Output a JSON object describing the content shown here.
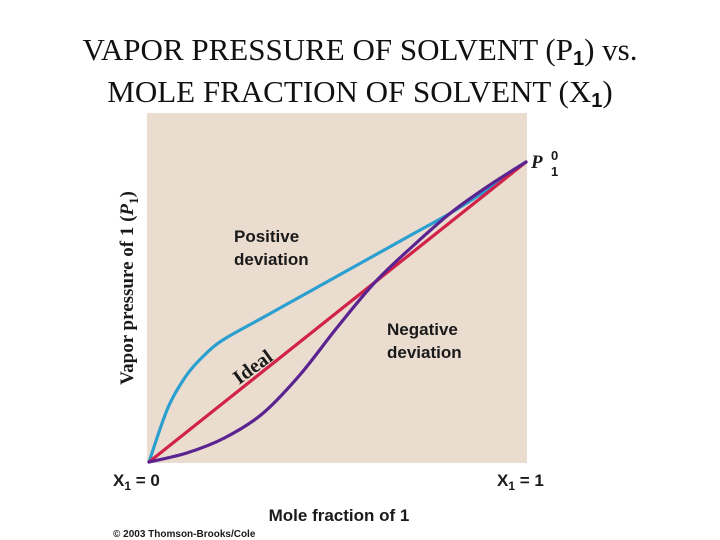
{
  "title": {
    "line1_prefix": "VAPOR PRESSURE OF SOLVENT (P",
    "line1_sub": "1",
    "line1_suffix": ") vs.",
    "line2_prefix": "MOLE FRACTION OF SOLVENT (X",
    "line2_sub": "1",
    "line2_suffix": ")"
  },
  "copyright": "© 2003 Thomson-Brooks/Cole",
  "chart_data": {
    "type": "line",
    "xlabel": "Mole fraction of 1",
    "ylabel_prefix": "Vapor pressure of 1 (",
    "ylabel_var": "P",
    "ylabel_sub": "1",
    "ylabel_suffix": ")",
    "x_tick_left": {
      "var": "X",
      "sub": "1",
      "rest": " = 0"
    },
    "x_tick_right": {
      "var": "X",
      "sub": "1",
      "rest": " = 1"
    },
    "endpoint_label": {
      "var": "P",
      "sup": "0",
      "sub": "1"
    },
    "xlim": [
      0,
      1
    ],
    "ylim": [
      0,
      1
    ],
    "grid": false,
    "plot_background": "#eadccf",
    "series": [
      {
        "label_line1": "Positive",
        "label_line2": "deviation",
        "color": "#2b9fd0",
        "x": [
          0,
          0.05,
          0.1,
          0.15,
          0.2,
          0.3,
          0.4,
          0.5,
          0.6,
          0.7,
          0.8,
          0.9,
          1
        ],
        "y": [
          0,
          0.18,
          0.29,
          0.36,
          0.41,
          0.48,
          0.55,
          0.62,
          0.69,
          0.76,
          0.83,
          0.91,
          1
        ]
      },
      {
        "label": "Ideal",
        "color": "#d1234a",
        "x": [
          0,
          1
        ],
        "y": [
          0,
          1
        ]
      },
      {
        "label_line1": "Negative",
        "label_line2": "deviation",
        "color": "#5a2390",
        "x": [
          0,
          0.1,
          0.2,
          0.3,
          0.4,
          0.5,
          0.6,
          0.7,
          0.8,
          0.9,
          1
        ],
        "y": [
          0,
          0.03,
          0.08,
          0.16,
          0.29,
          0.45,
          0.6,
          0.72,
          0.83,
          0.92,
          1
        ]
      }
    ]
  }
}
